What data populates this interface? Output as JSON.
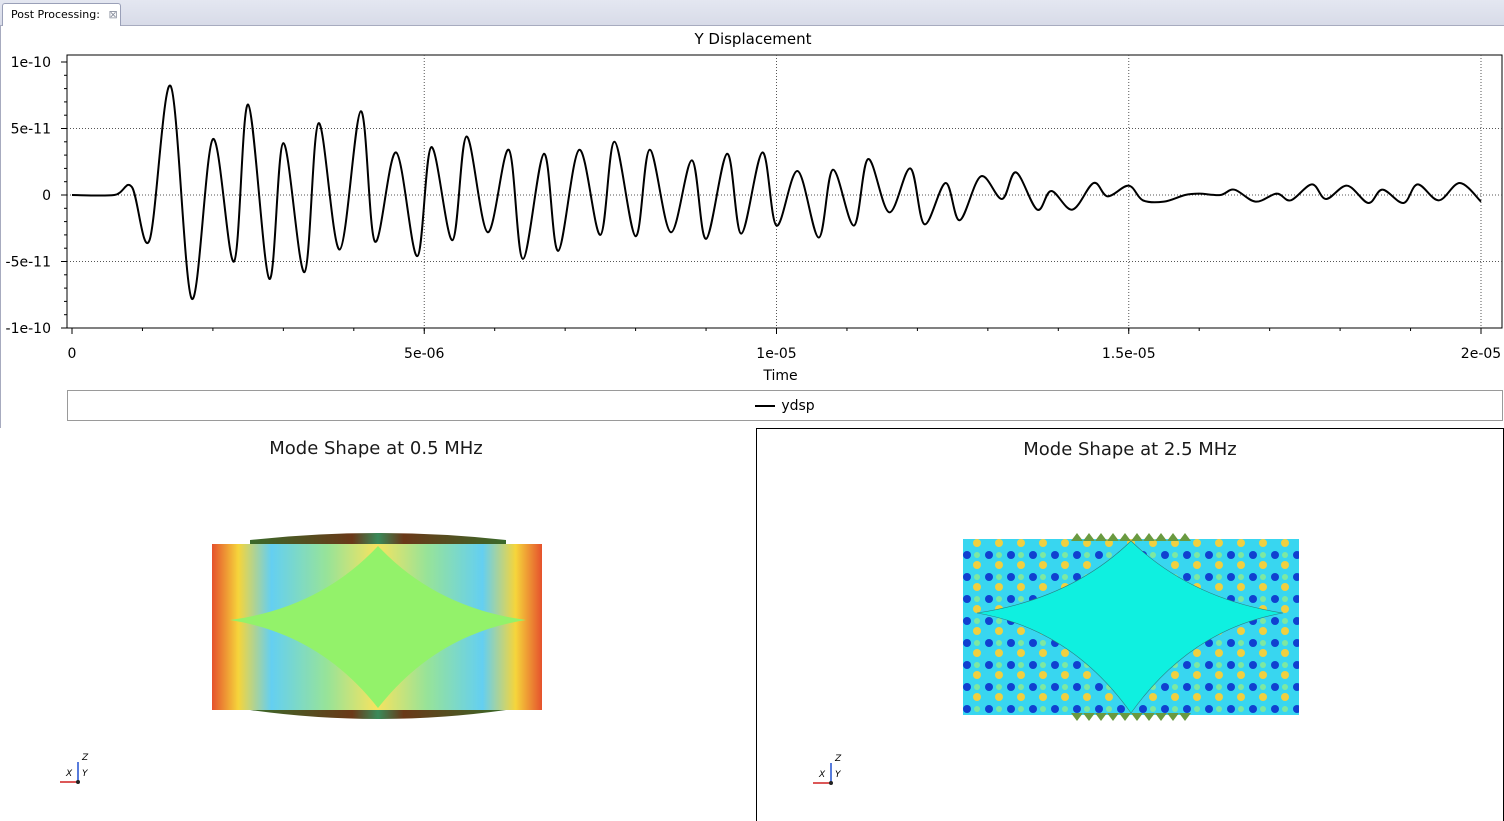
{
  "tab": {
    "label": "Post Processing:",
    "close_icon": "close-icon"
  },
  "chart_data": {
    "type": "line",
    "title": "Y Displacement",
    "xlabel": "Time",
    "ylabel": "",
    "xlim": [
      0,
      2e-05
    ],
    "ylim": [
      -1e-10,
      1e-10
    ],
    "x_ticks": [
      "0",
      "5e-06",
      "1e-05",
      "1.5e-05",
      "2e-05"
    ],
    "y_ticks": [
      "1e-10",
      "5e-11",
      "0",
      "-5e-11",
      "-1e-10"
    ],
    "grid": true,
    "legend": "bottom",
    "series": [
      {
        "name": "ydsp",
        "color": "#000000",
        "x": [
          0,
          6e-07,
          8.5e-07,
          1.1e-06,
          1.4e-06,
          1.7e-06,
          2e-06,
          2.3e-06,
          2.5e-06,
          2.8e-06,
          3e-06,
          3.3e-06,
          3.5e-06,
          3.8e-06,
          4.1e-06,
          4.3e-06,
          4.6e-06,
          4.9e-06,
          5.1e-06,
          5.4e-06,
          5.6e-06,
          5.9e-06,
          6.2e-06,
          6.4e-06,
          6.7e-06,
          6.9e-06,
          7.2e-06,
          7.5e-06,
          7.7e-06,
          8e-06,
          8.2e-06,
          8.5e-06,
          8.8e-06,
          9e-06,
          9.3e-06,
          9.5e-06,
          9.8e-06,
          1e-05,
          1.03e-05,
          1.06e-05,
          1.08e-05,
          1.11e-05,
          1.13e-05,
          1.16e-05,
          1.19e-05,
          1.21e-05,
          1.24e-05,
          1.26e-05,
          1.29e-05,
          1.32e-05,
          1.34e-05,
          1.37e-05,
          1.39e-05,
          1.42e-05,
          1.45e-05,
          1.47e-05,
          1.5e-05,
          1.52e-05,
          1.55e-05,
          1.58e-05,
          1.6e-05,
          1.63e-05,
          1.65e-05,
          1.68e-05,
          1.71e-05,
          1.73e-05,
          1.76e-05,
          1.78e-05,
          1.81e-05,
          1.84e-05,
          1.86e-05,
          1.89e-05,
          1.91e-05,
          1.94e-05,
          1.97e-05,
          2e-05
        ],
        "y": [
          0,
          0,
          6e-12,
          -3.4e-11,
          8.2e-11,
          -7.8e-11,
          4.2e-11,
          -5e-11,
          6.8e-11,
          -6.3e-11,
          3.9e-11,
          -5.8e-11,
          5.4e-11,
          -4.1e-11,
          6.3e-11,
          -3.5e-11,
          3.2e-11,
          -4.6e-11,
          3.6e-11,
          -3.4e-11,
          4.4e-11,
          -2.8e-11,
          3.4e-11,
          -4.8e-11,
          3.1e-11,
          -4.2e-11,
          3.4e-11,
          -3e-11,
          4e-11,
          -3.1e-11,
          3.4e-11,
          -2.8e-11,
          2.6e-11,
          -3.3e-11,
          3.1e-11,
          -2.9e-11,
          3.2e-11,
          -2.3e-11,
          1.8e-11,
          -3.2e-11,
          1.9e-11,
          -2.3e-11,
          2.7e-11,
          -1.3e-11,
          2e-11,
          -2.2e-11,
          9e-12,
          -1.9e-11,
          1.4e-11,
          -3e-12,
          1.7e-11,
          -1.1e-11,
          3e-12,
          -1.1e-11,
          9e-12,
          -1e-12,
          7e-12,
          -4e-12,
          -5e-12,
          0,
          1e-12,
          0,
          4e-12,
          -5e-12,
          1e-12,
          -4e-12,
          8e-12,
          -3e-12,
          7e-12,
          -6e-12,
          4e-12,
          -6e-12,
          8e-12,
          -4e-12,
          9e-12,
          -5e-12
        ]
      }
    ]
  },
  "views": [
    {
      "title": "Mode Shape at 0.5 MHz",
      "fill": "#93f26a",
      "axes_labels": {
        "z": "Z",
        "x": "X",
        "y": "Y"
      }
    },
    {
      "title": "Mode Shape at 2.5 MHz",
      "fill": "#0ff0e0",
      "axes_labels": {
        "z": "Z",
        "x": "X",
        "y": "Y"
      }
    }
  ]
}
